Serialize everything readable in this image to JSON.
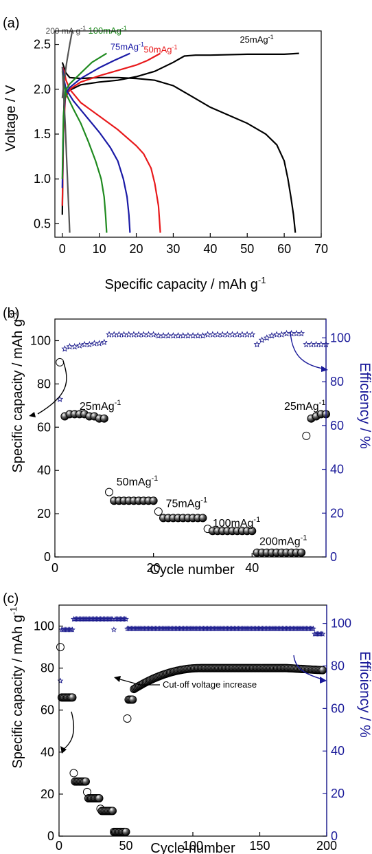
{
  "panels": {
    "a": {
      "label": "(a)",
      "xlabel": "Specific capacity / mAh g",
      "xlabel_sup": "-1",
      "ylabel": "Voltage / V"
    },
    "b": {
      "label": "(b)",
      "xlabel": "Cycle number",
      "ylabel": "Specific capacity / mAh g",
      "ylabel_sup": "-1",
      "ylabel_right": "Efficiency / %"
    },
    "c": {
      "label": "(c)",
      "xlabel": "Cycle number",
      "ylabel": "Specific capacity / mAh g",
      "ylabel_sup": "-1",
      "ylabel_right": "Efficiency / %",
      "annotation": "Cut-off voltage increase"
    }
  },
  "colors": {
    "25": "#000000",
    "50": "#e8191b",
    "75": "#1a1aa6",
    "100": "#1f8a1f",
    "200": "#555555",
    "efficiency": "#1a1a8c",
    "axis_right": "#1a1a99"
  },
  "chart_data": [
    {
      "panel": "a",
      "type": "line",
      "xlabel": "Specific capacity / mAh g-1",
      "ylabel": "Voltage / V",
      "xlim": [
        -2,
        70
      ],
      "ylim": [
        0.35,
        2.65
      ],
      "xticks": [
        0,
        10,
        20,
        30,
        40,
        50,
        60,
        70
      ],
      "yticks": [
        0.5,
        1.0,
        1.5,
        2.0,
        2.5
      ],
      "series": [
        {
          "name": "25mAg-1",
          "label_text": "25mAg",
          "label_sup": "-1",
          "color": "#000000",
          "discharge": [
            [
              0,
              2.3
            ],
            [
              1,
              2.18
            ],
            [
              2,
              2.13
            ],
            [
              5,
              2.12
            ],
            [
              10,
              2.13
            ],
            [
              15,
              2.13
            ],
            [
              20,
              2.12
            ],
            [
              25,
              2.1
            ],
            [
              30,
              2.04
            ],
            [
              35,
              1.92
            ],
            [
              40,
              1.8
            ],
            [
              45,
              1.71
            ],
            [
              50,
              1.62
            ],
            [
              55,
              1.5
            ],
            [
              58,
              1.38
            ],
            [
              60,
              1.2
            ],
            [
              61,
              1.0
            ],
            [
              61.8,
              0.8
            ],
            [
              62.5,
              0.6
            ],
            [
              63,
              0.4
            ]
          ],
          "charge": [
            [
              0,
              0.6
            ],
            [
              0.2,
              1.4
            ],
            [
              0.5,
              1.9
            ],
            [
              2,
              1.99
            ],
            [
              5,
              2.05
            ],
            [
              10,
              2.08
            ],
            [
              15,
              2.1
            ],
            [
              20,
              2.14
            ],
            [
              25,
              2.2
            ],
            [
              30,
              2.3
            ],
            [
              33,
              2.37
            ],
            [
              36,
              2.38
            ],
            [
              40,
              2.38
            ],
            [
              50,
              2.39
            ],
            [
              60,
              2.39
            ],
            [
              64,
              2.4
            ]
          ]
        },
        {
          "name": "50mAg-1",
          "label_text": "50mAg",
          "label_sup": "-1",
          "color": "#e8191b",
          "discharge": [
            [
              0,
              2.25
            ],
            [
              0.5,
              2.2
            ],
            [
              1,
              2.1
            ],
            [
              2,
              2.0
            ],
            [
              5,
              1.85
            ],
            [
              10,
              1.7
            ],
            [
              15,
              1.55
            ],
            [
              20,
              1.37
            ],
            [
              22,
              1.28
            ],
            [
              24,
              1.12
            ],
            [
              25,
              0.95
            ],
            [
              26,
              0.7
            ],
            [
              26.5,
              0.4
            ]
          ],
          "charge": [
            [
              0,
              0.7
            ],
            [
              0.3,
              1.5
            ],
            [
              0.8,
              1.9
            ],
            [
              2,
              2.0
            ],
            [
              5,
              2.08
            ],
            [
              10,
              2.15
            ],
            [
              15,
              2.21
            ],
            [
              20,
              2.27
            ],
            [
              23,
              2.32
            ],
            [
              26.5,
              2.4
            ]
          ]
        },
        {
          "name": "75mAg-1",
          "label_text": "75mAg",
          "label_sup": "-1",
          "color": "#1a1aa6",
          "discharge": [
            [
              0,
              2.25
            ],
            [
              0.5,
              2.1
            ],
            [
              1,
              2.0
            ],
            [
              3,
              1.87
            ],
            [
              6,
              1.72
            ],
            [
              10,
              1.52
            ],
            [
              13,
              1.35
            ],
            [
              15,
              1.2
            ],
            [
              16.5,
              1.0
            ],
            [
              17.5,
              0.8
            ],
            [
              18,
              0.6
            ],
            [
              18.3,
              0.4
            ]
          ],
          "charge": [
            [
              0,
              0.9
            ],
            [
              0.3,
              1.6
            ],
            [
              0.8,
              1.95
            ],
            [
              2,
              2.02
            ],
            [
              5,
              2.12
            ],
            [
              10,
              2.24
            ],
            [
              14,
              2.32
            ],
            [
              18.3,
              2.4
            ]
          ]
        },
        {
          "name": "100mAg-1",
          "label_text": "100mAg",
          "label_sup": "-1",
          "color": "#1f8a1f",
          "discharge": [
            [
              0,
              2.2
            ],
            [
              0.5,
              2.05
            ],
            [
              1,
              1.95
            ],
            [
              3,
              1.78
            ],
            [
              5,
              1.62
            ],
            [
              7,
              1.42
            ],
            [
              9,
              1.2
            ],
            [
              10.5,
              1.0
            ],
            [
              11.3,
              0.8
            ],
            [
              11.7,
              0.6
            ],
            [
              12,
              0.4
            ]
          ],
          "charge": [
            [
              0,
              1.0
            ],
            [
              0.3,
              1.7
            ],
            [
              0.8,
              1.98
            ],
            [
              2,
              2.06
            ],
            [
              5,
              2.18
            ],
            [
              8,
              2.3
            ],
            [
              12,
              2.4
            ]
          ]
        },
        {
          "name": "200mAg-1",
          "label_text": "200 mA g",
          "label_sup": "-1",
          "color": "#555555",
          "discharge": [
            [
              0,
              2.25
            ],
            [
              0.3,
              2.0
            ],
            [
              0.8,
              1.6
            ],
            [
              1.2,
              1.2
            ],
            [
              1.6,
              0.8
            ],
            [
              2,
              0.4
            ]
          ],
          "charge": [
            [
              0,
              1.9
            ],
            [
              0.5,
              2.1
            ],
            [
              1.2,
              2.3
            ],
            [
              2,
              2.5
            ],
            [
              2.7,
              2.65
            ]
          ]
        }
      ]
    },
    {
      "panel": "b",
      "type": "scatter",
      "xlabel": "Cycle number",
      "ylabel": "Specific capacity / mAh g-1",
      "ylabel_right": "Efficiency / %",
      "xlim": [
        0,
        55
      ],
      "ylim": [
        0,
        110
      ],
      "ylim_right": [
        0,
        108.6
      ],
      "xticks": [
        0,
        20,
        40
      ],
      "yticks": [
        0,
        20,
        40,
        60,
        80,
        100
      ],
      "yticks_right": [
        0,
        20,
        40,
        60,
        80,
        100
      ],
      "rate_labels": [
        {
          "text": "25mAg",
          "sup": "-1",
          "cycle": 5,
          "capacity": 68
        },
        {
          "text": "50mAg",
          "sup": "-1",
          "cycle": 12.5,
          "capacity": 33
        },
        {
          "text": "75mAg",
          "sup": "-1",
          "cycle": 22.5,
          "capacity": 23
        },
        {
          "text": "100mAg",
          "sup": "-1",
          "cycle": 32,
          "capacity": 14
        },
        {
          "text": "200mAg",
          "sup": "-1",
          "cycle": 41.5,
          "capacity": 5.5
        },
        {
          "text": "25mAg",
          "sup": "-1",
          "cycle": 46.5,
          "capacity": 68
        }
      ],
      "capacity": [
        90,
        65,
        66,
        66,
        66,
        66,
        65,
        65,
        64,
        64,
        30,
        26,
        26,
        26,
        26,
        26,
        26,
        26,
        26,
        26,
        21,
        18,
        18,
        18,
        18,
        18,
        18,
        18,
        18,
        18,
        13,
        12,
        12,
        12,
        12,
        12,
        12,
        12,
        12,
        12,
        2,
        2,
        2,
        2,
        2,
        2,
        2,
        2,
        2,
        2,
        56,
        64,
        65,
        66,
        66
      ],
      "capacity_open_cycles": [
        1,
        11,
        21,
        31,
        51
      ],
      "efficiency": [
        73,
        96,
        96,
        96.5,
        97,
        97,
        97.5,
        97.5,
        98,
        98,
        101,
        102,
        102,
        102,
        102,
        102,
        102,
        102,
        102,
        102,
        101,
        101,
        101,
        101,
        101,
        101,
        101,
        101,
        101,
        101,
        101.5,
        101.5,
        101.5,
        101.5,
        101.5,
        101.5,
        101.5,
        101.5,
        101.5,
        101.5,
        101.5,
        101.5,
        101.5,
        101.5,
        101.5,
        101.5,
        101.5,
        101.5,
        101.5,
        101.5,
        96,
        101,
        102,
        102,
        102,
        102,
        102,
        102,
        102,
        102,
        101,
        101,
        101,
        101,
        101,
        101,
        101,
        101,
        101,
        101,
        101.5,
        101.5,
        101.5,
        101.5,
        101.5,
        101.5,
        101.5,
        101.5,
        101.5,
        101.5,
        97.5,
        97.5,
        97.5,
        97.5
      ],
      "efficiency_compact": [
        72,
        95,
        96,
        96,
        96.5,
        97,
        97,
        97.5,
        97.5,
        98,
        101.5,
        101.5,
        101.5,
        101.5,
        101.5,
        101.5,
        101.5,
        101.5,
        101.5,
        101.5,
        101,
        101,
        101,
        101,
        101,
        101,
        101,
        101,
        101,
        101,
        101.5,
        101.5,
        101.5,
        101.5,
        101.5,
        101.5,
        101.5,
        101.5,
        101.5,
        101.5,
        97,
        99,
        100,
        101,
        101.5,
        101.5,
        102,
        102,
        102,
        102,
        97,
        97,
        97,
        97,
        97
      ]
    },
    {
      "panel": "c",
      "type": "scatter",
      "xlabel": "Cycle number",
      "ylabel": "Specific capacity / mAh g-1",
      "ylabel_right": "Efficiency / %",
      "xlim": [
        0,
        200
      ],
      "ylim": [
        0,
        110
      ],
      "ylim_right": [
        0,
        108.6
      ],
      "xticks": [
        0,
        50,
        100,
        150,
        200
      ],
      "yticks": [
        0,
        20,
        40,
        60,
        80,
        100
      ],
      "yticks_right": [
        0,
        20,
        40,
        60,
        80,
        100
      ],
      "capacity_steps": [
        {
          "from": 1,
          "to": 1,
          "value": 90
        },
        {
          "from": 2,
          "to": 10,
          "value": 66
        },
        {
          "from": 11,
          "to": 11,
          "value": 30
        },
        {
          "from": 12,
          "to": 20,
          "value": 26
        },
        {
          "from": 21,
          "to": 21,
          "value": 21
        },
        {
          "from": 22,
          "to": 30,
          "value": 18
        },
        {
          "from": 31,
          "to": 31,
          "value": 13
        },
        {
          "from": 32,
          "to": 40,
          "value": 12
        },
        {
          "from": 41,
          "to": 50,
          "value": 2
        },
        {
          "from": 51,
          "to": 51,
          "value": 56
        },
        {
          "from": 52,
          "to": 55,
          "value": 65
        }
      ],
      "capacity_ramp": {
        "start_cycle": 56,
        "end_cycle": 197,
        "start_value": 70,
        "plateau_value": 80,
        "final_value": 79
      },
      "efficiency_levels": [
        {
          "from": 1,
          "to": 1,
          "value": 73
        },
        {
          "from": 2,
          "to": 10,
          "value": 97
        },
        {
          "from": 11,
          "to": 40,
          "value": 102
        },
        {
          "from": 41,
          "to": 41,
          "value": 97
        },
        {
          "from": 42,
          "to": 50,
          "value": 102
        },
        {
          "from": 51,
          "to": 190,
          "value": 97.5
        },
        {
          "from": 191,
          "to": 197,
          "value": 95
        }
      ]
    }
  ]
}
